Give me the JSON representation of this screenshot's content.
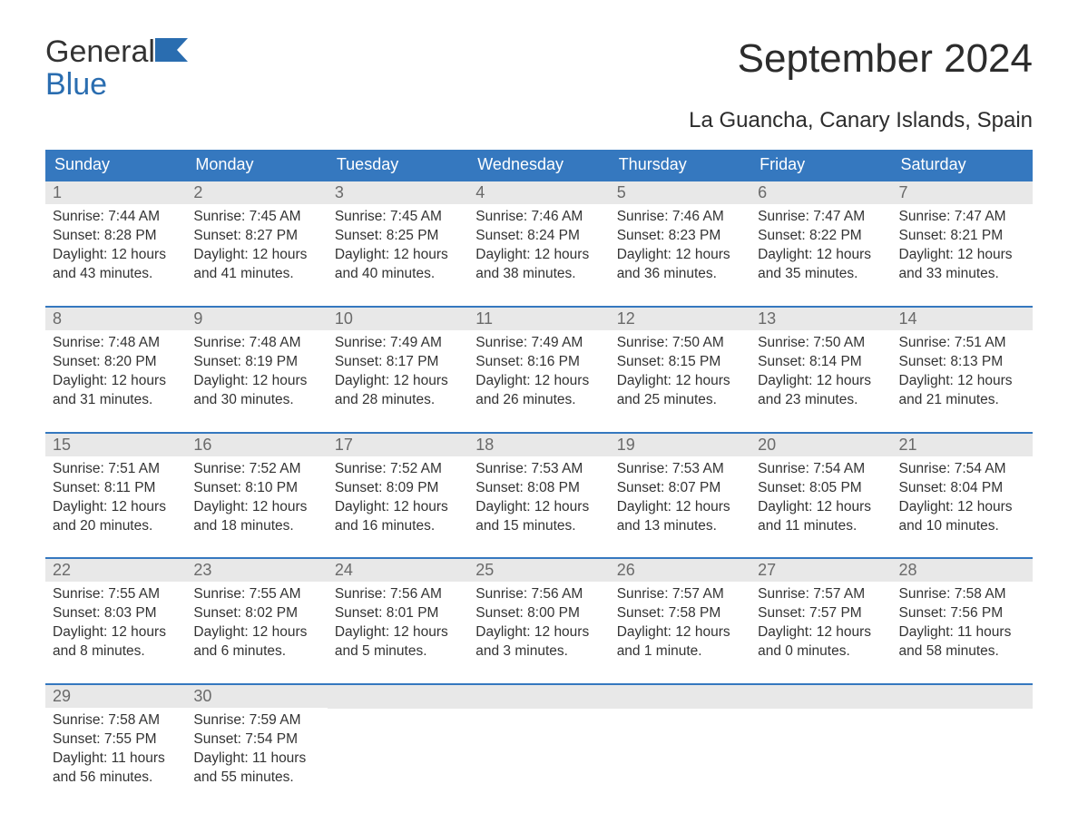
{
  "brand": {
    "word1": "General",
    "word2": "Blue"
  },
  "title": "September 2024",
  "subtitle": "La Guancha, Canary Islands, Spain",
  "colors": {
    "header_bg": "#3578bf",
    "header_text": "#ffffff",
    "daynum_bg": "#e8e8e8",
    "daynum_text": "#6a6a6a",
    "body_text": "#333333",
    "week_border": "#3578bf",
    "background": "#ffffff",
    "brand_blue": "#2a6db0"
  },
  "fonts": {
    "title_size_pt": 33,
    "subtitle_size_pt": 18,
    "weekday_size_pt": 14,
    "daynum_size_pt": 14,
    "body_size_pt": 12
  },
  "weekdays": [
    "Sunday",
    "Monday",
    "Tuesday",
    "Wednesday",
    "Thursday",
    "Friday",
    "Saturday"
  ],
  "labels": {
    "sunrise": "Sunrise:",
    "sunset": "Sunset:",
    "daylight": "Daylight:"
  },
  "weeks": [
    [
      {
        "n": "1",
        "sr": "7:44 AM",
        "ss": "8:28 PM",
        "dl": "12 hours and 43 minutes."
      },
      {
        "n": "2",
        "sr": "7:45 AM",
        "ss": "8:27 PM",
        "dl": "12 hours and 41 minutes."
      },
      {
        "n": "3",
        "sr": "7:45 AM",
        "ss": "8:25 PM",
        "dl": "12 hours and 40 minutes."
      },
      {
        "n": "4",
        "sr": "7:46 AM",
        "ss": "8:24 PM",
        "dl": "12 hours and 38 minutes."
      },
      {
        "n": "5",
        "sr": "7:46 AM",
        "ss": "8:23 PM",
        "dl": "12 hours and 36 minutes."
      },
      {
        "n": "6",
        "sr": "7:47 AM",
        "ss": "8:22 PM",
        "dl": "12 hours and 35 minutes."
      },
      {
        "n": "7",
        "sr": "7:47 AM",
        "ss": "8:21 PM",
        "dl": "12 hours and 33 minutes."
      }
    ],
    [
      {
        "n": "8",
        "sr": "7:48 AM",
        "ss": "8:20 PM",
        "dl": "12 hours and 31 minutes."
      },
      {
        "n": "9",
        "sr": "7:48 AM",
        "ss": "8:19 PM",
        "dl": "12 hours and 30 minutes."
      },
      {
        "n": "10",
        "sr": "7:49 AM",
        "ss": "8:17 PM",
        "dl": "12 hours and 28 minutes."
      },
      {
        "n": "11",
        "sr": "7:49 AM",
        "ss": "8:16 PM",
        "dl": "12 hours and 26 minutes."
      },
      {
        "n": "12",
        "sr": "7:50 AM",
        "ss": "8:15 PM",
        "dl": "12 hours and 25 minutes."
      },
      {
        "n": "13",
        "sr": "7:50 AM",
        "ss": "8:14 PM",
        "dl": "12 hours and 23 minutes."
      },
      {
        "n": "14",
        "sr": "7:51 AM",
        "ss": "8:13 PM",
        "dl": "12 hours and 21 minutes."
      }
    ],
    [
      {
        "n": "15",
        "sr": "7:51 AM",
        "ss": "8:11 PM",
        "dl": "12 hours and 20 minutes."
      },
      {
        "n": "16",
        "sr": "7:52 AM",
        "ss": "8:10 PM",
        "dl": "12 hours and 18 minutes."
      },
      {
        "n": "17",
        "sr": "7:52 AM",
        "ss": "8:09 PM",
        "dl": "12 hours and 16 minutes."
      },
      {
        "n": "18",
        "sr": "7:53 AM",
        "ss": "8:08 PM",
        "dl": "12 hours and 15 minutes."
      },
      {
        "n": "19",
        "sr": "7:53 AM",
        "ss": "8:07 PM",
        "dl": "12 hours and 13 minutes."
      },
      {
        "n": "20",
        "sr": "7:54 AM",
        "ss": "8:05 PM",
        "dl": "12 hours and 11 minutes."
      },
      {
        "n": "21",
        "sr": "7:54 AM",
        "ss": "8:04 PM",
        "dl": "12 hours and 10 minutes."
      }
    ],
    [
      {
        "n": "22",
        "sr": "7:55 AM",
        "ss": "8:03 PM",
        "dl": "12 hours and 8 minutes."
      },
      {
        "n": "23",
        "sr": "7:55 AM",
        "ss": "8:02 PM",
        "dl": "12 hours and 6 minutes."
      },
      {
        "n": "24",
        "sr": "7:56 AM",
        "ss": "8:01 PM",
        "dl": "12 hours and 5 minutes."
      },
      {
        "n": "25",
        "sr": "7:56 AM",
        "ss": "8:00 PM",
        "dl": "12 hours and 3 minutes."
      },
      {
        "n": "26",
        "sr": "7:57 AM",
        "ss": "7:58 PM",
        "dl": "12 hours and 1 minute."
      },
      {
        "n": "27",
        "sr": "7:57 AM",
        "ss": "7:57 PM",
        "dl": "12 hours and 0 minutes."
      },
      {
        "n": "28",
        "sr": "7:58 AM",
        "ss": "7:56 PM",
        "dl": "11 hours and 58 minutes."
      }
    ],
    [
      {
        "n": "29",
        "sr": "7:58 AM",
        "ss": "7:55 PM",
        "dl": "11 hours and 56 minutes."
      },
      {
        "n": "30",
        "sr": "7:59 AM",
        "ss": "7:54 PM",
        "dl": "11 hours and 55 minutes."
      },
      {
        "empty": true
      },
      {
        "empty": true
      },
      {
        "empty": true
      },
      {
        "empty": true
      },
      {
        "empty": true
      }
    ]
  ]
}
